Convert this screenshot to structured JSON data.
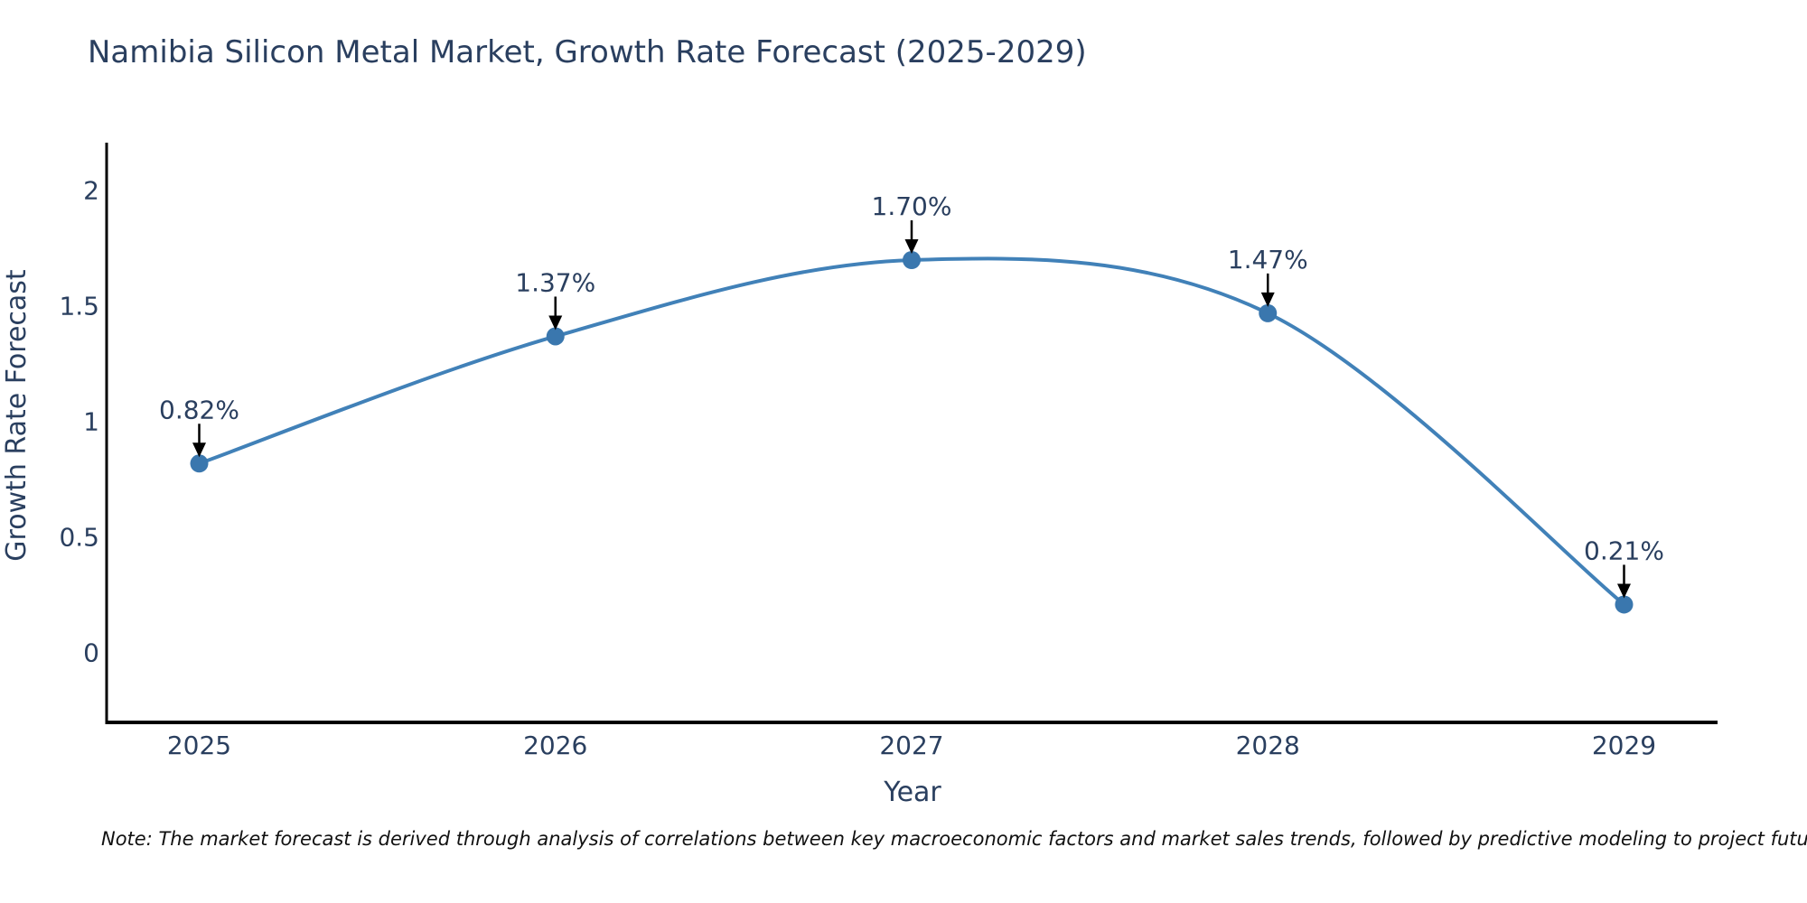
{
  "header": {
    "title": "Namibia Silicon Metal Market, Growth Rate Forecast (2025-2029)"
  },
  "footnote": {
    "text": "Note: The market forecast is derived through analysis of correlations between key macroeconomic factors and market sales trends, followed by predictive modeling to project future sales"
  },
  "colors": {
    "background": "#ffffff",
    "title_text": "#2a3f5f",
    "tick_text": "#2a3f5f",
    "axis_title_text": "#2a3f5f",
    "axis_line": "#000000",
    "series_line": "#4181b8",
    "marker_fill": "#3a77ae",
    "annotation_text": "#2a3f5f",
    "annotation_arrow": "#000000",
    "note_text": "#111111"
  },
  "chart_data": {
    "type": "line",
    "title": "Namibia Silicon Metal Market, Growth Rate Forecast (2025-2029)",
    "xlabel": "Year",
    "ylabel": "Growth Rate Forecast",
    "x": [
      2025,
      2026,
      2027,
      2028,
      2029
    ],
    "series": [
      {
        "name": "Growth Rate Forecast",
        "values": [
          0.82,
          1.37,
          1.7,
          1.47,
          0.21
        ]
      }
    ],
    "point_labels": [
      "0.82%",
      "1.37%",
      "1.70%",
      "1.47%",
      "0.21%"
    ],
    "xticks": {
      "values": [
        2025,
        2026,
        2027,
        2028,
        2029
      ],
      "labels": [
        "2025",
        "2026",
        "2027",
        "2028",
        "2029"
      ]
    },
    "yticks": {
      "values": [
        0,
        0.5,
        1,
        1.5,
        2
      ],
      "labels": [
        "0",
        "0.5",
        "1",
        "1.5",
        "2"
      ]
    },
    "xlim": [
      2024.74,
      2029.26
    ],
    "ylim": [
      -0.3,
      2.2
    ],
    "grid": false,
    "legend": "none",
    "line_shape": "spline",
    "annotation_style": "value label above each point with black down arrow"
  }
}
